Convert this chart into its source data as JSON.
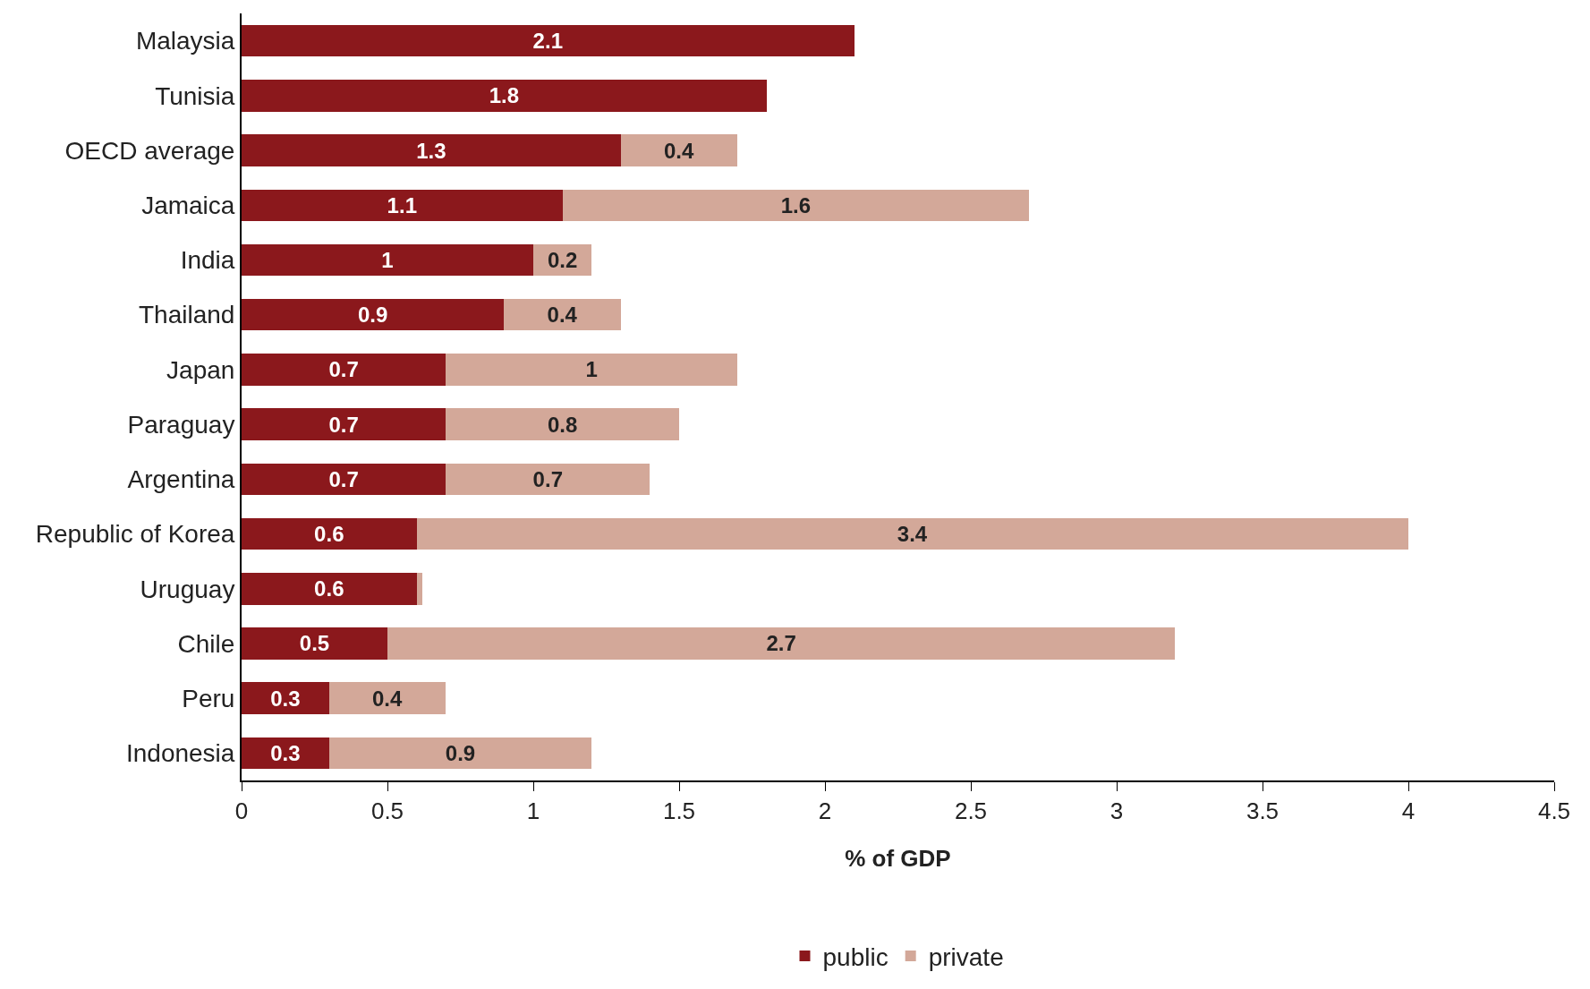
{
  "chart_data": {
    "type": "bar",
    "orientation": "horizontal",
    "stacked": true,
    "xlabel": "% of GDP",
    "categories": [
      "Malaysia",
      "Tunisia",
      "OECD average",
      "Jamaica",
      "India",
      "Thailand",
      "Japan",
      "Paraguay",
      "Argentina",
      "Republic of Korea",
      "Uruguay",
      "Chile",
      "Peru",
      "Indonesia"
    ],
    "series": [
      {
        "name": "public",
        "color": "#8b181c",
        "values": [
          2.1,
          1.8,
          1.3,
          1.1,
          1,
          0.9,
          0.7,
          0.7,
          0.7,
          0.6,
          0.6,
          0.5,
          0.3,
          0.3
        ],
        "value_labels": [
          "2.1",
          "1.8",
          "1.3",
          "1.1",
          "1",
          "0.9",
          "0.7",
          "0.7",
          "0.7",
          "0.6",
          "0.6",
          "0.5",
          "0.3",
          "0.3"
        ]
      },
      {
        "name": "private",
        "color": "#d3a899",
        "values": [
          null,
          null,
          0.4,
          1.6,
          0.2,
          0.4,
          1,
          0.8,
          0.7,
          3.4,
          0.02,
          2.7,
          0.4,
          0.9
        ],
        "value_labels": [
          null,
          null,
          "0.4",
          "1.6",
          "0.2",
          "0.4",
          "1",
          "0.8",
          "0.7",
          "3.4",
          null,
          "2.7",
          "0.4",
          "0.9"
        ]
      }
    ],
    "xlim": [
      0,
      4.5
    ],
    "xticks": [
      0,
      0.5,
      1,
      1.5,
      2,
      2.5,
      3,
      3.5,
      4,
      4.5
    ],
    "legend": "bottom"
  }
}
